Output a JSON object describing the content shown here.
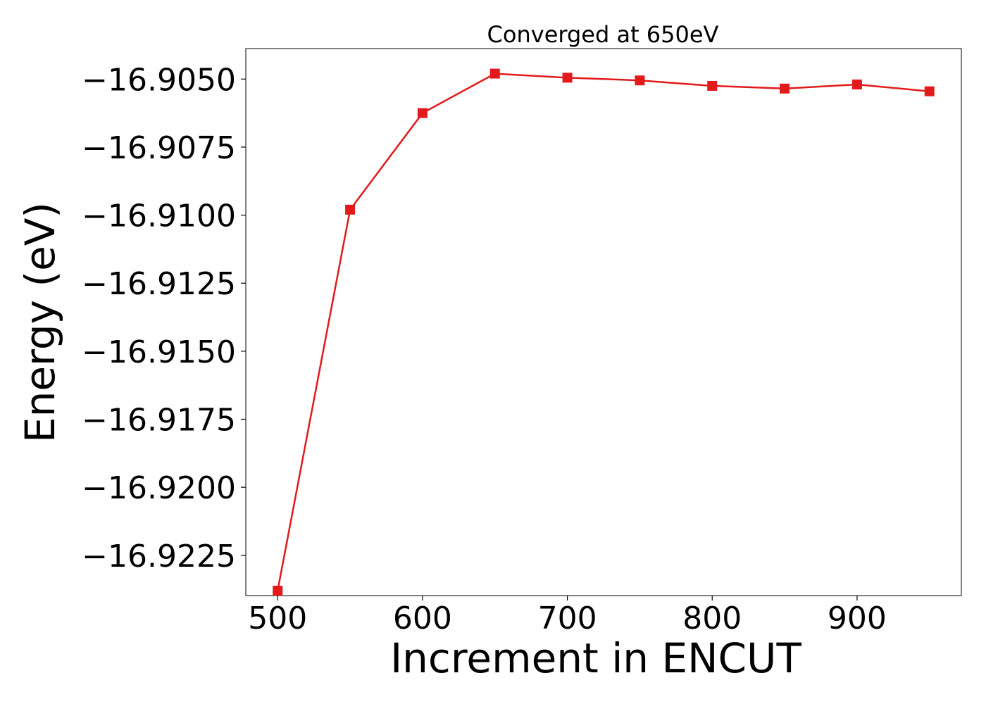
{
  "chart_data": {
    "type": "line",
    "title": "Converged at 650eV",
    "xlabel": "Increment in ENCUT",
    "ylabel": "Energy (eV)",
    "x": [
      500,
      550,
      600,
      650,
      700,
      750,
      800,
      850,
      900,
      950
    ],
    "series": [
      {
        "name": "",
        "values": [
          -16.9238,
          -16.9098,
          -16.90625,
          -16.9048,
          -16.90495,
          -16.90505,
          -16.90525,
          -16.90535,
          -16.9052,
          -16.90545
        ]
      }
    ],
    "xlim": [
      478,
      972
    ],
    "ylim": [
      -16.92398,
      -16.90388
    ],
    "xticks": [
      500,
      600,
      700,
      800,
      900
    ],
    "xtick_labels": [
      "500",
      "600",
      "700",
      "800",
      "900"
    ],
    "yticks": [
      -16.905,
      -16.9075,
      -16.91,
      -16.9125,
      -16.915,
      -16.9175,
      -16.92,
      -16.9225
    ],
    "ytick_labels": [
      "−16.9050",
      "−16.9075",
      "−16.9100",
      "−16.9125",
      "−16.9150",
      "−16.9175",
      "−16.9200",
      "−16.9225"
    ],
    "grid": false,
    "legend": "none",
    "line_color": "#e31a1c",
    "marker": "square"
  }
}
